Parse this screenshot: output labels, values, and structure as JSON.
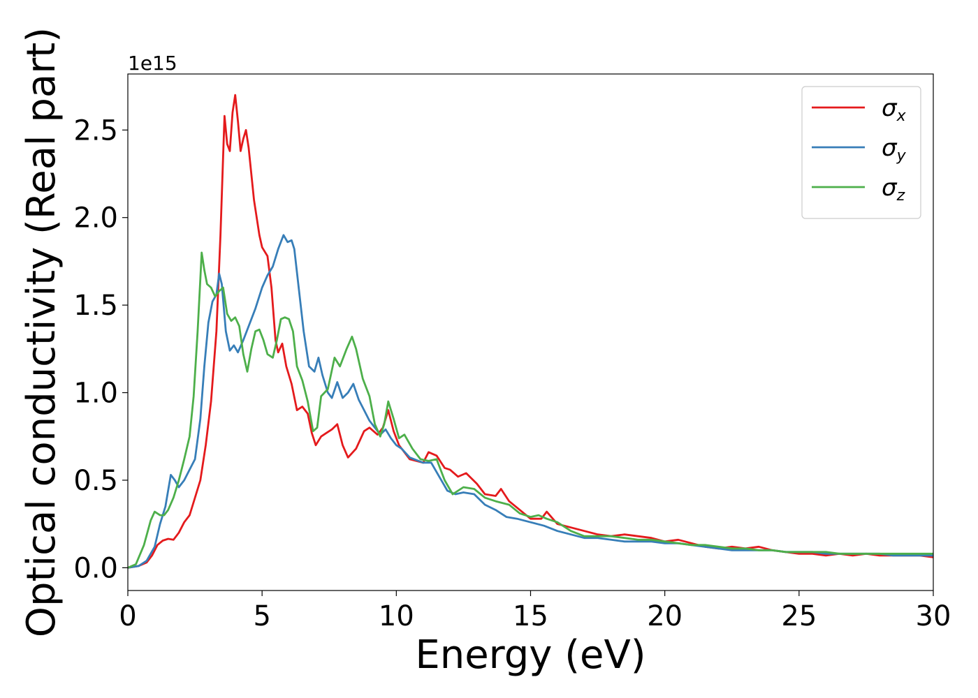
{
  "chart_data": {
    "type": "line",
    "title": "",
    "xlabel": "Energy (eV)",
    "ylabel": "Optical conductivity (Real part)",
    "y_offset_text": "1e15",
    "xlim": [
      0,
      30
    ],
    "ylim": [
      -0.13,
      2.82
    ],
    "x_ticks": [
      0,
      5,
      10,
      15,
      20,
      25,
      30
    ],
    "x_tick_labels": [
      "0",
      "5",
      "10",
      "15",
      "20",
      "25",
      "30"
    ],
    "y_ticks": [
      0.0,
      0.5,
      1.0,
      1.5,
      2.0,
      2.5
    ],
    "y_tick_labels": [
      "0.0",
      "0.5",
      "1.0",
      "1.5",
      "2.0",
      "2.5"
    ],
    "grid": false,
    "legend_position": "top-right",
    "series": [
      {
        "name": "σx",
        "symbol": "σ",
        "subscript": "x",
        "color": "#e41a1c",
        "points": [
          [
            0,
            0
          ],
          [
            0.4,
            0.01
          ],
          [
            0.7,
            0.03
          ],
          [
            0.9,
            0.07
          ],
          [
            1.1,
            0.13
          ],
          [
            1.3,
            0.155
          ],
          [
            1.5,
            0.165
          ],
          [
            1.7,
            0.16
          ],
          [
            1.9,
            0.2
          ],
          [
            2.1,
            0.26
          ],
          [
            2.3,
            0.3
          ],
          [
            2.5,
            0.4
          ],
          [
            2.7,
            0.5
          ],
          [
            2.9,
            0.7
          ],
          [
            3.1,
            0.95
          ],
          [
            3.3,
            1.35
          ],
          [
            3.45,
            1.9
          ],
          [
            3.55,
            2.35
          ],
          [
            3.6,
            2.58
          ],
          [
            3.7,
            2.42
          ],
          [
            3.8,
            2.38
          ],
          [
            3.9,
            2.6
          ],
          [
            4.0,
            2.7
          ],
          [
            4.1,
            2.55
          ],
          [
            4.2,
            2.38
          ],
          [
            4.3,
            2.45
          ],
          [
            4.4,
            2.5
          ],
          [
            4.5,
            2.4
          ],
          [
            4.7,
            2.1
          ],
          [
            4.9,
            1.9
          ],
          [
            5.0,
            1.83
          ],
          [
            5.2,
            1.78
          ],
          [
            5.35,
            1.6
          ],
          [
            5.5,
            1.3
          ],
          [
            5.6,
            1.23
          ],
          [
            5.75,
            1.28
          ],
          [
            5.9,
            1.15
          ],
          [
            6.1,
            1.05
          ],
          [
            6.3,
            0.9
          ],
          [
            6.5,
            0.92
          ],
          [
            6.7,
            0.88
          ],
          [
            6.85,
            0.77
          ],
          [
            7.0,
            0.7
          ],
          [
            7.2,
            0.75
          ],
          [
            7.4,
            0.77
          ],
          [
            7.6,
            0.79
          ],
          [
            7.8,
            0.82
          ],
          [
            8.0,
            0.7
          ],
          [
            8.2,
            0.63
          ],
          [
            8.5,
            0.68
          ],
          [
            8.8,
            0.78
          ],
          [
            9.0,
            0.8
          ],
          [
            9.3,
            0.76
          ],
          [
            9.5,
            0.8
          ],
          [
            9.7,
            0.9
          ],
          [
            9.9,
            0.78
          ],
          [
            10.1,
            0.7
          ],
          [
            10.5,
            0.62
          ],
          [
            11.0,
            0.6
          ],
          [
            11.2,
            0.66
          ],
          [
            11.5,
            0.64
          ],
          [
            11.8,
            0.57
          ],
          [
            12.0,
            0.56
          ],
          [
            12.3,
            0.52
          ],
          [
            12.6,
            0.54
          ],
          [
            13.0,
            0.48
          ],
          [
            13.3,
            0.42
          ],
          [
            13.7,
            0.41
          ],
          [
            13.9,
            0.45
          ],
          [
            14.2,
            0.38
          ],
          [
            14.6,
            0.33
          ],
          [
            15.0,
            0.28
          ],
          [
            15.4,
            0.28
          ],
          [
            15.6,
            0.32
          ],
          [
            16.0,
            0.25
          ],
          [
            16.5,
            0.23
          ],
          [
            17.0,
            0.21
          ],
          [
            17.5,
            0.19
          ],
          [
            18.0,
            0.18
          ],
          [
            18.5,
            0.19
          ],
          [
            19.0,
            0.18
          ],
          [
            19.5,
            0.17
          ],
          [
            20.0,
            0.15
          ],
          [
            20.5,
            0.16
          ],
          [
            21.0,
            0.14
          ],
          [
            21.5,
            0.12
          ],
          [
            22.0,
            0.11
          ],
          [
            22.5,
            0.12
          ],
          [
            23.0,
            0.11
          ],
          [
            23.5,
            0.12
          ],
          [
            24.0,
            0.1
          ],
          [
            24.5,
            0.09
          ],
          [
            25.0,
            0.08
          ],
          [
            25.5,
            0.08
          ],
          [
            26.0,
            0.07
          ],
          [
            26.5,
            0.08
          ],
          [
            27.0,
            0.07
          ],
          [
            27.5,
            0.08
          ],
          [
            28.0,
            0.07
          ],
          [
            28.5,
            0.07
          ],
          [
            29.0,
            0.07
          ],
          [
            29.5,
            0.07
          ],
          [
            30.0,
            0.06
          ]
        ]
      },
      {
        "name": "σy",
        "symbol": "σ",
        "subscript": "y",
        "color": "#377eb8",
        "points": [
          [
            0,
            0
          ],
          [
            0.4,
            0.01
          ],
          [
            0.7,
            0.04
          ],
          [
            1.0,
            0.12
          ],
          [
            1.2,
            0.25
          ],
          [
            1.4,
            0.35
          ],
          [
            1.6,
            0.53
          ],
          [
            1.75,
            0.5
          ],
          [
            1.9,
            0.46
          ],
          [
            2.1,
            0.5
          ],
          [
            2.3,
            0.56
          ],
          [
            2.5,
            0.62
          ],
          [
            2.7,
            0.85
          ],
          [
            2.85,
            1.15
          ],
          [
            3.0,
            1.4
          ],
          [
            3.15,
            1.52
          ],
          [
            3.3,
            1.56
          ],
          [
            3.4,
            1.68
          ],
          [
            3.5,
            1.62
          ],
          [
            3.65,
            1.35
          ],
          [
            3.8,
            1.24
          ],
          [
            3.95,
            1.27
          ],
          [
            4.1,
            1.23
          ],
          [
            4.3,
            1.3
          ],
          [
            4.55,
            1.4
          ],
          [
            4.75,
            1.48
          ],
          [
            5.0,
            1.6
          ],
          [
            5.2,
            1.67
          ],
          [
            5.4,
            1.72
          ],
          [
            5.6,
            1.82
          ],
          [
            5.8,
            1.9
          ],
          [
            5.95,
            1.86
          ],
          [
            6.1,
            1.87
          ],
          [
            6.2,
            1.82
          ],
          [
            6.4,
            1.55
          ],
          [
            6.55,
            1.35
          ],
          [
            6.75,
            1.15
          ],
          [
            6.95,
            1.12
          ],
          [
            7.1,
            1.2
          ],
          [
            7.25,
            1.1
          ],
          [
            7.45,
            1.0
          ],
          [
            7.6,
            0.97
          ],
          [
            7.8,
            1.06
          ],
          [
            8.0,
            0.97
          ],
          [
            8.2,
            1.0
          ],
          [
            8.4,
            1.05
          ],
          [
            8.6,
            0.96
          ],
          [
            8.8,
            0.9
          ],
          [
            9.0,
            0.84
          ],
          [
            9.2,
            0.8
          ],
          [
            9.4,
            0.76
          ],
          [
            9.6,
            0.79
          ],
          [
            9.8,
            0.74
          ],
          [
            10.0,
            0.7
          ],
          [
            10.2,
            0.68
          ],
          [
            10.5,
            0.63
          ],
          [
            11.0,
            0.6
          ],
          [
            11.3,
            0.6
          ],
          [
            11.6,
            0.52
          ],
          [
            11.9,
            0.44
          ],
          [
            12.2,
            0.42
          ],
          [
            12.5,
            0.43
          ],
          [
            12.9,
            0.42
          ],
          [
            13.3,
            0.36
          ],
          [
            13.7,
            0.33
          ],
          [
            14.1,
            0.29
          ],
          [
            14.5,
            0.28
          ],
          [
            15.0,
            0.26
          ],
          [
            15.5,
            0.24
          ],
          [
            16.0,
            0.21
          ],
          [
            16.5,
            0.19
          ],
          [
            17.0,
            0.17
          ],
          [
            17.5,
            0.17
          ],
          [
            18.0,
            0.16
          ],
          [
            18.5,
            0.15
          ],
          [
            19.0,
            0.15
          ],
          [
            19.5,
            0.15
          ],
          [
            20.0,
            0.14
          ],
          [
            20.5,
            0.14
          ],
          [
            21.0,
            0.13
          ],
          [
            21.5,
            0.12
          ],
          [
            22.0,
            0.11
          ],
          [
            22.5,
            0.1
          ],
          [
            23.0,
            0.1
          ],
          [
            23.5,
            0.1
          ],
          [
            24.0,
            0.1
          ],
          [
            24.5,
            0.09
          ],
          [
            25.0,
            0.09
          ],
          [
            25.5,
            0.09
          ],
          [
            26.0,
            0.08
          ],
          [
            26.5,
            0.08
          ],
          [
            27.0,
            0.08
          ],
          [
            27.5,
            0.08
          ],
          [
            28.0,
            0.08
          ],
          [
            28.5,
            0.07
          ],
          [
            29.0,
            0.07
          ],
          [
            29.5,
            0.07
          ],
          [
            30.0,
            0.07
          ]
        ]
      },
      {
        "name": "σz",
        "symbol": "σ",
        "subscript": "z",
        "color": "#4daf4a",
        "points": [
          [
            0,
            0
          ],
          [
            0.3,
            0.02
          ],
          [
            0.6,
            0.13
          ],
          [
            0.85,
            0.27
          ],
          [
            1.0,
            0.32
          ],
          [
            1.2,
            0.3
          ],
          [
            1.35,
            0.3
          ],
          [
            1.5,
            0.33
          ],
          [
            1.7,
            0.4
          ],
          [
            1.9,
            0.5
          ],
          [
            2.1,
            0.62
          ],
          [
            2.3,
            0.75
          ],
          [
            2.45,
            0.98
          ],
          [
            2.6,
            1.35
          ],
          [
            2.7,
            1.65
          ],
          [
            2.75,
            1.8
          ],
          [
            2.85,
            1.7
          ],
          [
            2.95,
            1.62
          ],
          [
            3.1,
            1.6
          ],
          [
            3.25,
            1.55
          ],
          [
            3.4,
            1.58
          ],
          [
            3.55,
            1.6
          ],
          [
            3.7,
            1.45
          ],
          [
            3.85,
            1.41
          ],
          [
            4.0,
            1.43
          ],
          [
            4.15,
            1.38
          ],
          [
            4.3,
            1.22
          ],
          [
            4.45,
            1.12
          ],
          [
            4.6,
            1.25
          ],
          [
            4.75,
            1.35
          ],
          [
            4.9,
            1.36
          ],
          [
            5.05,
            1.3
          ],
          [
            5.2,
            1.22
          ],
          [
            5.4,
            1.2
          ],
          [
            5.55,
            1.3
          ],
          [
            5.7,
            1.42
          ],
          [
            5.85,
            1.43
          ],
          [
            6.0,
            1.42
          ],
          [
            6.15,
            1.35
          ],
          [
            6.3,
            1.15
          ],
          [
            6.5,
            1.07
          ],
          [
            6.7,
            0.95
          ],
          [
            6.9,
            0.78
          ],
          [
            7.05,
            0.8
          ],
          [
            7.2,
            0.98
          ],
          [
            7.45,
            1.02
          ],
          [
            7.7,
            1.2
          ],
          [
            7.9,
            1.15
          ],
          [
            8.15,
            1.25
          ],
          [
            8.35,
            1.32
          ],
          [
            8.5,
            1.25
          ],
          [
            8.75,
            1.08
          ],
          [
            9.0,
            0.98
          ],
          [
            9.2,
            0.82
          ],
          [
            9.4,
            0.75
          ],
          [
            9.55,
            0.82
          ],
          [
            9.7,
            0.95
          ],
          [
            9.9,
            0.85
          ],
          [
            10.1,
            0.74
          ],
          [
            10.3,
            0.76
          ],
          [
            10.6,
            0.68
          ],
          [
            10.9,
            0.62
          ],
          [
            11.2,
            0.61
          ],
          [
            11.5,
            0.62
          ],
          [
            11.8,
            0.5
          ],
          [
            12.1,
            0.42
          ],
          [
            12.5,
            0.46
          ],
          [
            12.9,
            0.45
          ],
          [
            13.3,
            0.4
          ],
          [
            13.7,
            0.38
          ],
          [
            14.2,
            0.36
          ],
          [
            14.6,
            0.31
          ],
          [
            15.0,
            0.29
          ],
          [
            15.3,
            0.3
          ],
          [
            15.6,
            0.28
          ],
          [
            16.0,
            0.26
          ],
          [
            16.5,
            0.21
          ],
          [
            17.0,
            0.18
          ],
          [
            17.5,
            0.18
          ],
          [
            18.0,
            0.18
          ],
          [
            18.5,
            0.17
          ],
          [
            19.0,
            0.16
          ],
          [
            19.5,
            0.16
          ],
          [
            20.0,
            0.15
          ],
          [
            20.5,
            0.14
          ],
          [
            21.0,
            0.13
          ],
          [
            21.5,
            0.13
          ],
          [
            22.0,
            0.12
          ],
          [
            22.5,
            0.11
          ],
          [
            23.0,
            0.11
          ],
          [
            23.5,
            0.1
          ],
          [
            24.0,
            0.1
          ],
          [
            24.5,
            0.09
          ],
          [
            25.0,
            0.09
          ],
          [
            25.5,
            0.09
          ],
          [
            26.0,
            0.09
          ],
          [
            26.5,
            0.08
          ],
          [
            27.0,
            0.08
          ],
          [
            27.5,
            0.08
          ],
          [
            28.0,
            0.08
          ],
          [
            28.5,
            0.08
          ],
          [
            29.0,
            0.08
          ],
          [
            29.5,
            0.08
          ],
          [
            30.0,
            0.08
          ]
        ]
      }
    ]
  }
}
